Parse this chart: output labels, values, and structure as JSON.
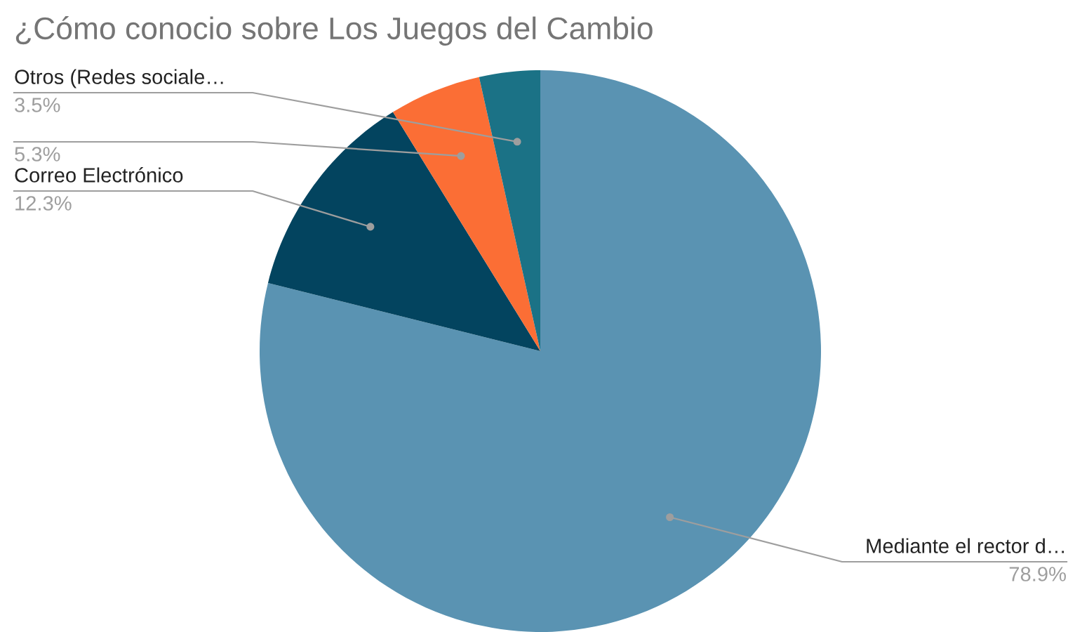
{
  "chart_data": {
    "type": "pie",
    "title": "¿Cómo conocio sobre Los Juegos del Cambio",
    "categories": [
      "Mediante el rector d…",
      "Correo Electrónico",
      null,
      "Otros (Redes sociale…"
    ],
    "values": [
      78.9,
      12.3,
      5.3,
      3.5
    ],
    "colors": [
      "#5a93b2",
      "#03445f",
      "#fb6e35",
      "#1b7286"
    ],
    "value_labels": [
      "78.9%",
      "12.3%",
      "5.3%",
      "3.5%"
    ]
  }
}
